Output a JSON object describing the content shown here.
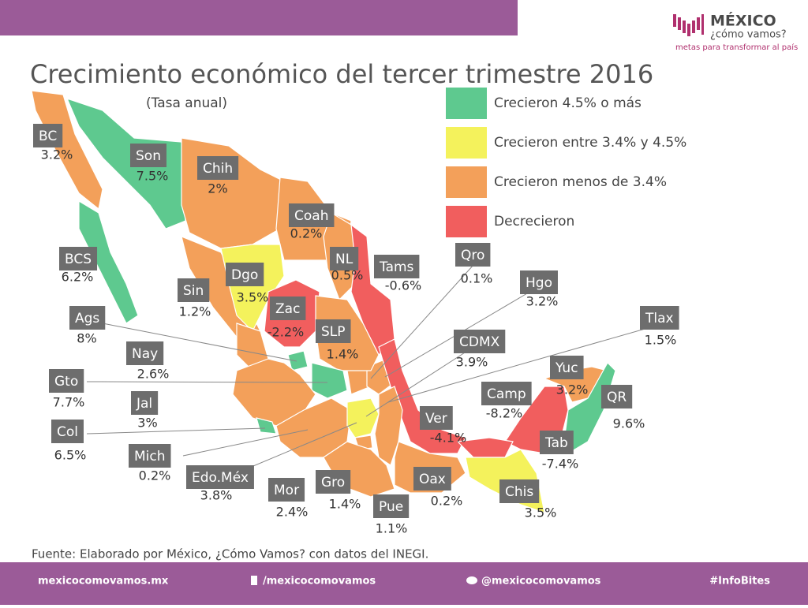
{
  "header": {
    "title": "Crecimiento económico del tercer trimestre 2016",
    "subtitle": "(Tasa anual)"
  },
  "logo": {
    "name": "MÉXICO",
    "tagline": "¿cómo vamos?",
    "motto": "metas para transformar al país"
  },
  "legend": [
    {
      "label": "Crecieron 4.5% o más",
      "color": "#5ec98f"
    },
    {
      "label": "Crecieron entre 3.4% y 4.5%",
      "color": "#f4f25c"
    },
    {
      "label": "Crecieron menos de 3.4%",
      "color": "#f3a05a"
    },
    {
      "label": "Decrecieron",
      "color": "#f15e5e"
    }
  ],
  "states": [
    {
      "abbr": "BC",
      "value": "3.2%",
      "color": "#f3a05a"
    },
    {
      "abbr": "Son",
      "value": "7.5%",
      "color": "#5ec98f"
    },
    {
      "abbr": "Chih",
      "value": "2%",
      "color": "#f3a05a"
    },
    {
      "abbr": "Coah",
      "value": "0.2%",
      "color": "#f3a05a"
    },
    {
      "abbr": "BCS",
      "value": "6.2%",
      "color": "#5ec98f"
    },
    {
      "abbr": "Sin",
      "value": "1.2%",
      "color": "#f3a05a"
    },
    {
      "abbr": "Dgo",
      "value": "3.5%",
      "color": "#f4f25c"
    },
    {
      "abbr": "NL",
      "value": "0.5%",
      "color": "#f3a05a"
    },
    {
      "abbr": "Tams",
      "value": "-0.6%",
      "color": "#f15e5e"
    },
    {
      "abbr": "Qro",
      "value": "0.1%",
      "color": "#f3a05a"
    },
    {
      "abbr": "Hgo",
      "value": "3.2%",
      "color": "#f3a05a"
    },
    {
      "abbr": "Ags",
      "value": "8%",
      "color": "#5ec98f"
    },
    {
      "abbr": "Zac",
      "value": "-2.2%",
      "color": "#f15e5e"
    },
    {
      "abbr": "SLP",
      "value": "1.4%",
      "color": "#f3a05a"
    },
    {
      "abbr": "Nay",
      "value": "2.6%",
      "color": "#f3a05a"
    },
    {
      "abbr": "Tlax",
      "value": "1.5%",
      "color": "#f3a05a"
    },
    {
      "abbr": "CDMX",
      "value": "3.9%",
      "color": "#f4f25c"
    },
    {
      "abbr": "Gto",
      "value": "7.7%",
      "color": "#5ec98f"
    },
    {
      "abbr": "Jal",
      "value": "3%",
      "color": "#f3a05a"
    },
    {
      "abbr": "Yuc",
      "value": "3.2%",
      "color": "#f3a05a"
    },
    {
      "abbr": "Camp",
      "value": "-8.2%",
      "color": "#f15e5e"
    },
    {
      "abbr": "QR",
      "value": "9.6%",
      "color": "#5ec98f"
    },
    {
      "abbr": "Col",
      "value": "6.5%",
      "color": "#5ec98f"
    },
    {
      "abbr": "Ver",
      "value": "-4.1%",
      "color": "#f15e5e"
    },
    {
      "abbr": "Mich",
      "value": "0.2%",
      "color": "#f3a05a"
    },
    {
      "abbr": "Tab",
      "value": "-7.4%",
      "color": "#f15e5e"
    },
    {
      "abbr": "Edo.Méx",
      "value": "3.8%",
      "color": "#f4f25c"
    },
    {
      "abbr": "Mor",
      "value": "2.4%",
      "color": "#f3a05a"
    },
    {
      "abbr": "Gro",
      "value": "1.4%",
      "color": "#f3a05a"
    },
    {
      "abbr": "Oax",
      "value": "0.2%",
      "color": "#f3a05a"
    },
    {
      "abbr": "Pue",
      "value": "1.1%",
      "color": "#f3a05a"
    },
    {
      "abbr": "Chis",
      "value": "3.5%",
      "color": "#f4f25c"
    }
  ],
  "source": "Fuente: Elaborado por México, ¿Cómo Vamos? con datos del INEGI.",
  "footer": {
    "website": "mexicocomovamos.mx",
    "facebook": "/mexicocomovamos",
    "twitter": "@mexicocomovamos",
    "hashtag": "#InfoBites"
  }
}
